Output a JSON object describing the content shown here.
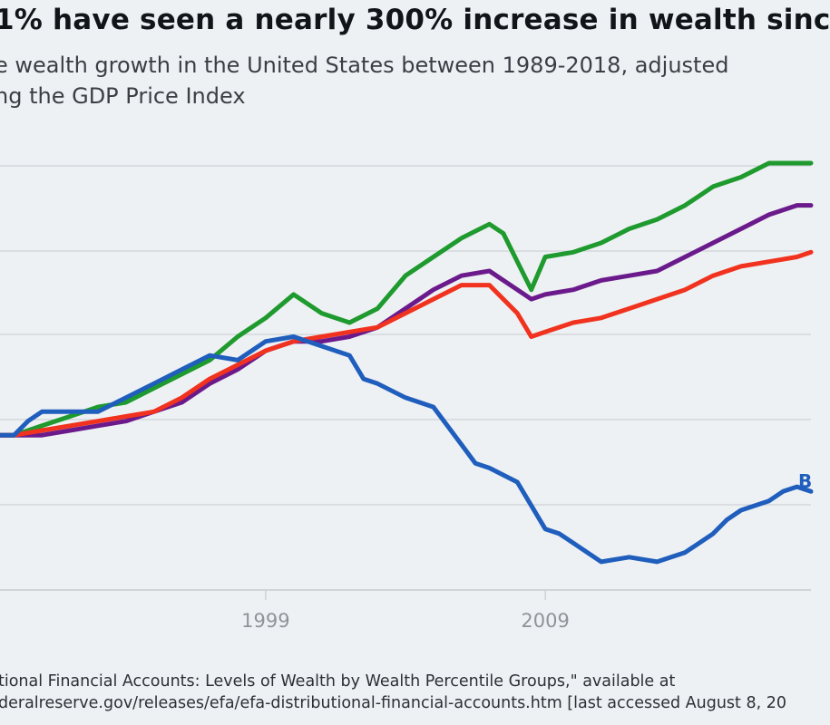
{
  "title": "1% have seen a nearly 300% increase in wealth sinc",
  "subtitle_line1": "e wealth growth in the United States between 1989-2018, adjusted",
  "subtitle_line2": "ng the GDP Price Index",
  "source_line1": "tional Financial Accounts: Levels of Wealth by Wealth Percentile Groups,\" available at",
  "source_line2": "deralreserve.gov/releases/efa/efa-distributional-financial-accounts.htm [last accessed August 8, 20",
  "series_end_label": "B",
  "colors": {
    "green": "#1e9a2e",
    "purple": "#6b1a8c",
    "red": "#f0321e",
    "blue": "#1f5ebd",
    "grid": "#c6cbd0",
    "tick": "#8e949a"
  },
  "chart_data": {
    "type": "line",
    "title": "1% have seen a nearly 300% increase in wealth sinc",
    "xlabel": "",
    "ylabel": "",
    "x_tick_labels": [
      "1999",
      "2009"
    ],
    "grid": true,
    "xlim": [
      1989.5,
      2018.5
    ],
    "ylim": [
      0.67,
      1.58
    ],
    "series": [
      {
        "color": "green",
        "x": [
          1989.5,
          1990,
          1991,
          1992,
          1993,
          1994,
          1995,
          1996,
          1997,
          1998,
          1999,
          2000,
          2001,
          2002,
          2003,
          2004,
          2005,
          2006,
          2007,
          2007.5,
          2008,
          2008.5,
          2009,
          2010,
          2011,
          2012,
          2013,
          2014,
          2015,
          2016,
          2017,
          2018,
          2018.5
        ],
        "y": [
          1.0,
          1.0,
          1.02,
          1.04,
          1.06,
          1.07,
          1.1,
          1.13,
          1.16,
          1.21,
          1.25,
          1.3,
          1.26,
          1.24,
          1.27,
          1.34,
          1.38,
          1.42,
          1.45,
          1.43,
          1.37,
          1.31,
          1.38,
          1.39,
          1.41,
          1.44,
          1.46,
          1.49,
          1.53,
          1.55,
          1.58,
          1.58,
          1.58
        ]
      },
      {
        "color": "purple",
        "x": [
          1989.5,
          1990,
          1991,
          1992,
          1993,
          1994,
          1995,
          1996,
          1997,
          1998,
          1999,
          2000,
          2001,
          2002,
          2003,
          2004,
          2005,
          2006,
          2007,
          2008,
          2008.5,
          2009,
          2010,
          2011,
          2012,
          2013,
          2014,
          2015,
          2016,
          2017,
          2018,
          2018.5
        ],
        "y": [
          1.0,
          1.0,
          1.0,
          1.01,
          1.02,
          1.03,
          1.05,
          1.07,
          1.11,
          1.14,
          1.18,
          1.2,
          1.2,
          1.21,
          1.23,
          1.27,
          1.31,
          1.34,
          1.35,
          1.31,
          1.29,
          1.3,
          1.31,
          1.33,
          1.34,
          1.35,
          1.38,
          1.41,
          1.44,
          1.47,
          1.49,
          1.49
        ]
      },
      {
        "color": "red",
        "x": [
          1989.5,
          1990,
          1991,
          1992,
          1993,
          1994,
          1995,
          1996,
          1997,
          1998,
          1999,
          2000,
          2001,
          2002,
          2003,
          2004,
          2005,
          2006,
          2007,
          2008,
          2008.5,
          2009,
          2010,
          2011,
          2012,
          2013,
          2014,
          2015,
          2016,
          2017,
          2018,
          2018.5
        ],
        "y": [
          1.0,
          1.0,
          1.01,
          1.02,
          1.03,
          1.04,
          1.05,
          1.08,
          1.12,
          1.15,
          1.18,
          1.2,
          1.21,
          1.22,
          1.23,
          1.26,
          1.29,
          1.32,
          1.32,
          1.26,
          1.21,
          1.22,
          1.24,
          1.25,
          1.27,
          1.29,
          1.31,
          1.34,
          1.36,
          1.37,
          1.38,
          1.39
        ]
      },
      {
        "color": "blue",
        "x": [
          1989.5,
          1990,
          1990.5,
          1991,
          1992,
          1993,
          1994,
          1995,
          1996,
          1997,
          1998,
          1999,
          2000,
          2001,
          2002,
          2002.5,
          2003,
          2004,
          2005,
          2006,
          2006.5,
          2007,
          2008,
          2009,
          2009.5,
          2010,
          2011,
          2012,
          2013,
          2014,
          2015,
          2015.5,
          2016,
          2017,
          2017.5,
          2018,
          2018.5
        ],
        "y": [
          1.0,
          1.0,
          1.03,
          1.05,
          1.05,
          1.05,
          1.08,
          1.11,
          1.14,
          1.17,
          1.16,
          1.2,
          1.21,
          1.19,
          1.17,
          1.12,
          1.11,
          1.08,
          1.06,
          0.98,
          0.94,
          0.93,
          0.9,
          0.8,
          0.79,
          0.77,
          0.73,
          0.74,
          0.73,
          0.75,
          0.79,
          0.82,
          0.84,
          0.86,
          0.88,
          0.89,
          0.88
        ]
      }
    ]
  }
}
